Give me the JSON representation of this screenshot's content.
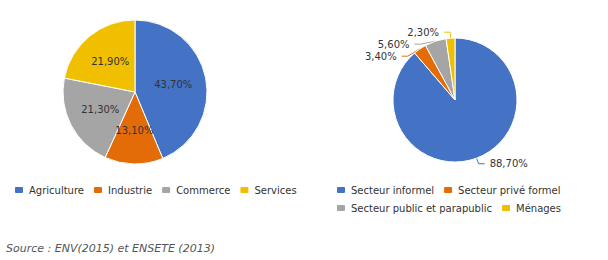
{
  "chart_data": [
    {
      "type": "pie",
      "categories": [
        "Agriculture",
        "Industrie",
        "Commerce",
        "Services"
      ],
      "values": [
        43.7,
        13.1,
        21.3,
        21.9
      ],
      "value_labels": [
        "43,70%",
        "13,10%",
        "21,30%",
        "21,90%"
      ],
      "data_labels": true,
      "colors": [
        "#4472C4",
        "#E36C09",
        "#A5A5A5",
        "#F0C000"
      ],
      "legend": "bottom",
      "annotations": [
        "Source : ENV(2015) et ENSETE (2013)"
      ]
    },
    {
      "type": "pie",
      "categories": [
        "Secteur informel",
        "Secteur privé formel",
        "Secteur public et parapublic",
        "Ménages"
      ],
      "values": [
        88.7,
        3.4,
        5.6,
        2.3
      ],
      "value_labels": [
        "88,70%",
        "3,40%",
        "5,60%",
        "2,30%"
      ],
      "data_labels": true,
      "colors": [
        "#4472C4",
        "#E36C09",
        "#A5A5A5",
        "#F0C000"
      ],
      "legend": "bottom"
    }
  ]
}
